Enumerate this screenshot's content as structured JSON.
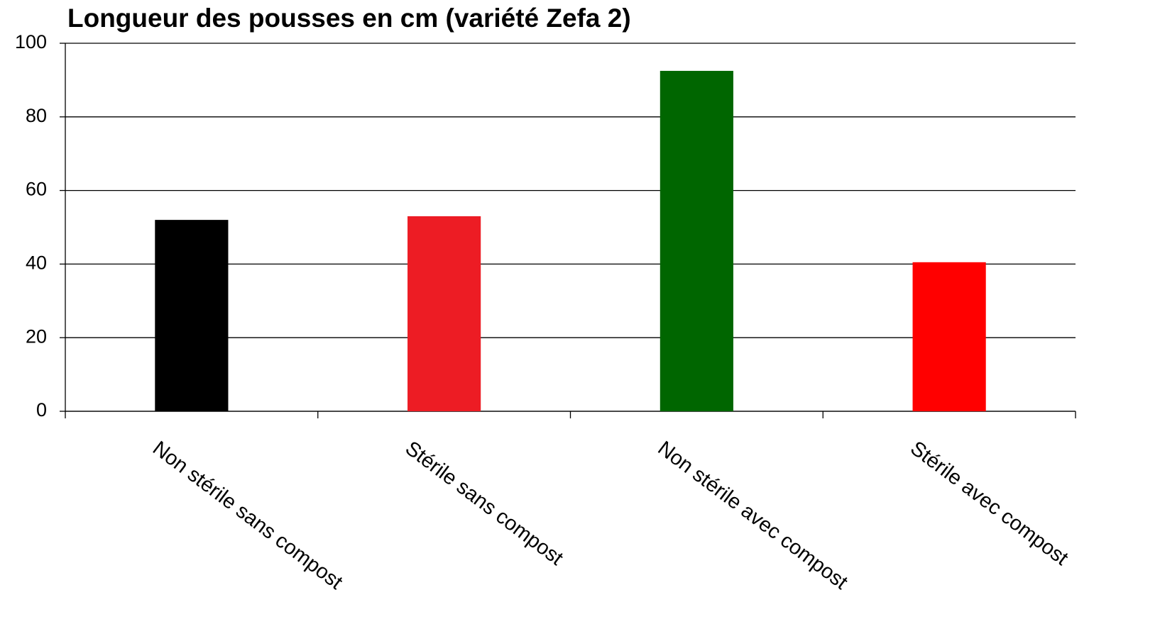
{
  "chart_data": {
    "type": "bar",
    "title": "Longueur des pousses en cm (variété Zefa 2)",
    "categories": [
      "Non stérile sans compost",
      "Stérile sans compost",
      "Non stérile avec compost",
      "Stérile avec compost"
    ],
    "values": [
      52,
      53,
      92.5,
      40.5
    ],
    "colors": [
      "#000000",
      "#ed1c24",
      "#006600",
      "#ff0000"
    ],
    "ylim": [
      0,
      100
    ],
    "yticks": [
      0,
      20,
      40,
      60,
      80,
      100
    ],
    "grid": true
  }
}
